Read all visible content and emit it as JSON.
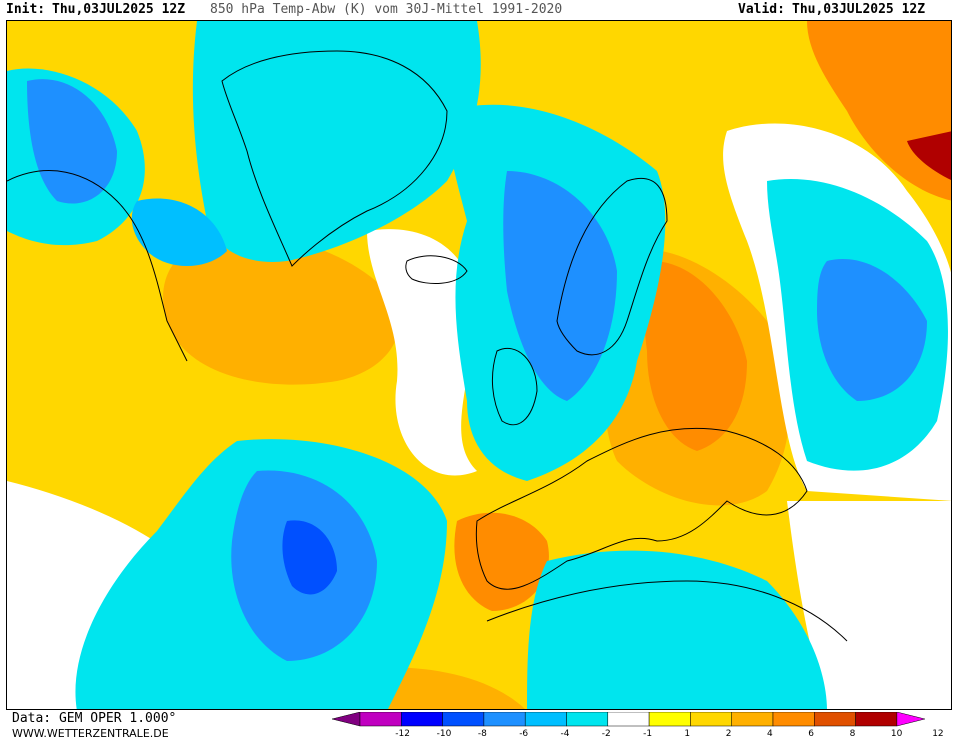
{
  "header": {
    "init_label": "Init:",
    "init_value": "Thu,03JUL2025 12Z",
    "title": "850 hPa Temp-Abw (K) vom 30J-Mittel 1991-2020",
    "valid_label": "Valid:",
    "valid_value": "Thu,03JUL2025 12Z"
  },
  "footer": {
    "data_source": "Data: GEM OPER 1.000°",
    "website": "WWW.WETTERZENTRALE.DE"
  },
  "legend": {
    "ticks": [
      "-12",
      "-10",
      "-8",
      "-6",
      "-4",
      "-2",
      "-1",
      "1",
      "2",
      "4",
      "6",
      "8",
      "10",
      "12"
    ],
    "colors": [
      "#800080",
      "#c000c0",
      "#0000ff",
      "#0050ff",
      "#1e90ff",
      "#00bfff",
      "#00e5ee",
      "#ffffff",
      "#ffff00",
      "#ffd700",
      "#ffb000",
      "#ff8c00",
      "#e05000",
      "#b00000",
      "#ff00ff"
    ]
  },
  "map_colors": {
    "cold1": "#00e5ee",
    "cold2": "#00bfff",
    "cold3": "#1e90ff",
    "cold4": "#0050ff",
    "neutral": "#ffffff",
    "warm1": "#ffff00",
    "warm2": "#ffd700",
    "warm3": "#ffb000",
    "warm4": "#ff8c00",
    "warm5": "#e05000",
    "warm6": "#b00000",
    "coastline": "#000000"
  }
}
